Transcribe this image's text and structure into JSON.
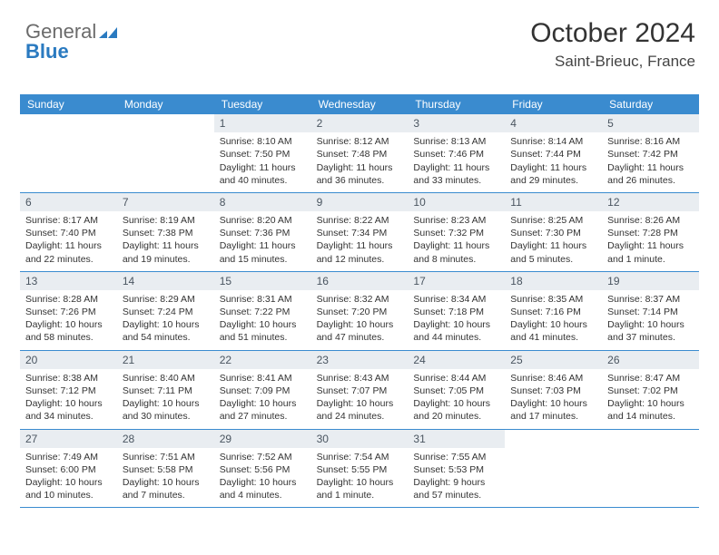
{
  "logo": {
    "text_gray": "General",
    "text_blue": "Blue"
  },
  "title": "October 2024",
  "location": "Saint-Brieuc, France",
  "colors": {
    "header_blue": "#3a8bcf",
    "daynum_band": "#e9edf1",
    "rule": "#3a8bcf",
    "text": "#333333",
    "logo_gray": "#6b6b6b",
    "logo_blue": "#2a7ac0"
  },
  "typography": {
    "title_fontsize": 30,
    "location_fontsize": 17,
    "dow_fontsize": 12,
    "daynum_fontsize": 12,
    "body_fontsize": 10.5
  },
  "days_of_week": [
    "Sunday",
    "Monday",
    "Tuesday",
    "Wednesday",
    "Thursday",
    "Friday",
    "Saturday"
  ],
  "weeks": [
    [
      null,
      null,
      {
        "n": "1",
        "sunrise": "8:10 AM",
        "sunset": "7:50 PM",
        "daylight": "11 hours and 40 minutes."
      },
      {
        "n": "2",
        "sunrise": "8:12 AM",
        "sunset": "7:48 PM",
        "daylight": "11 hours and 36 minutes."
      },
      {
        "n": "3",
        "sunrise": "8:13 AM",
        "sunset": "7:46 PM",
        "daylight": "11 hours and 33 minutes."
      },
      {
        "n": "4",
        "sunrise": "8:14 AM",
        "sunset": "7:44 PM",
        "daylight": "11 hours and 29 minutes."
      },
      {
        "n": "5",
        "sunrise": "8:16 AM",
        "sunset": "7:42 PM",
        "daylight": "11 hours and 26 minutes."
      }
    ],
    [
      {
        "n": "6",
        "sunrise": "8:17 AM",
        "sunset": "7:40 PM",
        "daylight": "11 hours and 22 minutes."
      },
      {
        "n": "7",
        "sunrise": "8:19 AM",
        "sunset": "7:38 PM",
        "daylight": "11 hours and 19 minutes."
      },
      {
        "n": "8",
        "sunrise": "8:20 AM",
        "sunset": "7:36 PM",
        "daylight": "11 hours and 15 minutes."
      },
      {
        "n": "9",
        "sunrise": "8:22 AM",
        "sunset": "7:34 PM",
        "daylight": "11 hours and 12 minutes."
      },
      {
        "n": "10",
        "sunrise": "8:23 AM",
        "sunset": "7:32 PM",
        "daylight": "11 hours and 8 minutes."
      },
      {
        "n": "11",
        "sunrise": "8:25 AM",
        "sunset": "7:30 PM",
        "daylight": "11 hours and 5 minutes."
      },
      {
        "n": "12",
        "sunrise": "8:26 AM",
        "sunset": "7:28 PM",
        "daylight": "11 hours and 1 minute."
      }
    ],
    [
      {
        "n": "13",
        "sunrise": "8:28 AM",
        "sunset": "7:26 PM",
        "daylight": "10 hours and 58 minutes."
      },
      {
        "n": "14",
        "sunrise": "8:29 AM",
        "sunset": "7:24 PM",
        "daylight": "10 hours and 54 minutes."
      },
      {
        "n": "15",
        "sunrise": "8:31 AM",
        "sunset": "7:22 PM",
        "daylight": "10 hours and 51 minutes."
      },
      {
        "n": "16",
        "sunrise": "8:32 AM",
        "sunset": "7:20 PM",
        "daylight": "10 hours and 47 minutes."
      },
      {
        "n": "17",
        "sunrise": "8:34 AM",
        "sunset": "7:18 PM",
        "daylight": "10 hours and 44 minutes."
      },
      {
        "n": "18",
        "sunrise": "8:35 AM",
        "sunset": "7:16 PM",
        "daylight": "10 hours and 41 minutes."
      },
      {
        "n": "19",
        "sunrise": "8:37 AM",
        "sunset": "7:14 PM",
        "daylight": "10 hours and 37 minutes."
      }
    ],
    [
      {
        "n": "20",
        "sunrise": "8:38 AM",
        "sunset": "7:12 PM",
        "daylight": "10 hours and 34 minutes."
      },
      {
        "n": "21",
        "sunrise": "8:40 AM",
        "sunset": "7:11 PM",
        "daylight": "10 hours and 30 minutes."
      },
      {
        "n": "22",
        "sunrise": "8:41 AM",
        "sunset": "7:09 PM",
        "daylight": "10 hours and 27 minutes."
      },
      {
        "n": "23",
        "sunrise": "8:43 AM",
        "sunset": "7:07 PM",
        "daylight": "10 hours and 24 minutes."
      },
      {
        "n": "24",
        "sunrise": "8:44 AM",
        "sunset": "7:05 PM",
        "daylight": "10 hours and 20 minutes."
      },
      {
        "n": "25",
        "sunrise": "8:46 AM",
        "sunset": "7:03 PM",
        "daylight": "10 hours and 17 minutes."
      },
      {
        "n": "26",
        "sunrise": "8:47 AM",
        "sunset": "7:02 PM",
        "daylight": "10 hours and 14 minutes."
      }
    ],
    [
      {
        "n": "27",
        "sunrise": "7:49 AM",
        "sunset": "6:00 PM",
        "daylight": "10 hours and 10 minutes."
      },
      {
        "n": "28",
        "sunrise": "7:51 AM",
        "sunset": "5:58 PM",
        "daylight": "10 hours and 7 minutes."
      },
      {
        "n": "29",
        "sunrise": "7:52 AM",
        "sunset": "5:56 PM",
        "daylight": "10 hours and 4 minutes."
      },
      {
        "n": "30",
        "sunrise": "7:54 AM",
        "sunset": "5:55 PM",
        "daylight": "10 hours and 1 minute."
      },
      {
        "n": "31",
        "sunrise": "7:55 AM",
        "sunset": "5:53 PM",
        "daylight": "9 hours and 57 minutes."
      },
      null,
      null
    ]
  ],
  "labels": {
    "sunrise": "Sunrise:",
    "sunset": "Sunset:",
    "daylight": "Daylight:"
  }
}
